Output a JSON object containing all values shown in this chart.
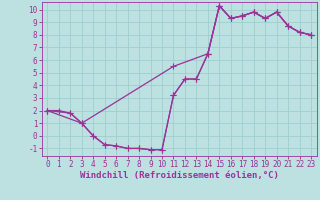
{
  "xlabel": "Windchill (Refroidissement éolien,°C)",
  "background_color": "#bde0e0",
  "grid_color": "#9fcece",
  "line_color": "#993399",
  "xlim": [
    -0.5,
    23.5
  ],
  "ylim": [
    -1.6,
    10.6
  ],
  "xticks": [
    0,
    1,
    2,
    3,
    4,
    5,
    6,
    7,
    8,
    9,
    10,
    11,
    12,
    13,
    14,
    15,
    16,
    17,
    18,
    19,
    20,
    21,
    22,
    23
  ],
  "yticks": [
    -1,
    0,
    1,
    2,
    3,
    4,
    5,
    6,
    7,
    8,
    9,
    10
  ],
  "line1_x": [
    0,
    1,
    2,
    3,
    4,
    5,
    6,
    7,
    8,
    9,
    10,
    11,
    12,
    13,
    14,
    15,
    16,
    17,
    18,
    19,
    20,
    21,
    22,
    23
  ],
  "line1_y": [
    2.0,
    2.0,
    1.8,
    1.0,
    0.0,
    -0.7,
    -0.8,
    -1.0,
    -1.0,
    -1.1,
    -1.1,
    3.2,
    4.5,
    4.5,
    6.5,
    10.3,
    9.3,
    9.5,
    9.8,
    9.3,
    9.8,
    8.7,
    8.2,
    8.0
  ],
  "line2_x": [
    0,
    3,
    11,
    14,
    15,
    16,
    17,
    18,
    19,
    20,
    21,
    22,
    23
  ],
  "line2_y": [
    2.0,
    1.0,
    5.5,
    6.5,
    10.3,
    9.3,
    9.5,
    9.8,
    9.3,
    9.8,
    8.7,
    8.2,
    8.0
  ],
  "line3_x": [
    0,
    2,
    3,
    4,
    5,
    6,
    7,
    8,
    9,
    10,
    11,
    12,
    13,
    14,
    15,
    16,
    17,
    18,
    19,
    20,
    21,
    22,
    23
  ],
  "line3_y": [
    2.0,
    1.8,
    1.0,
    0.0,
    -0.7,
    -0.8,
    -1.0,
    -1.0,
    -1.1,
    -1.1,
    3.2,
    4.5,
    4.5,
    6.5,
    10.3,
    9.3,
    9.5,
    9.8,
    9.3,
    9.8,
    8.7,
    8.2,
    8.0
  ],
  "markersize": 2.5,
  "linewidth": 0.9,
  "tick_fontsize": 5.5,
  "xlabel_fontsize": 6.5
}
